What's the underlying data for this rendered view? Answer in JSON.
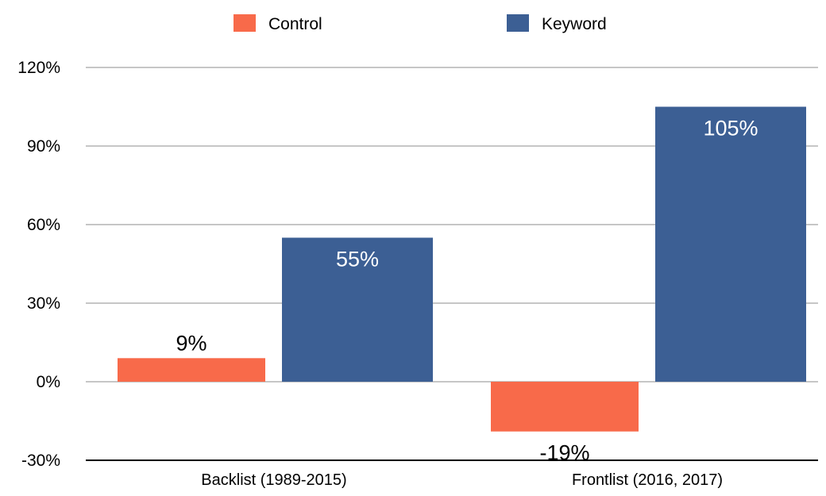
{
  "chart_data": {
    "type": "bar",
    "categories": [
      "Backlist (1989-2015)",
      "Frontlist (2016, 2017)"
    ],
    "series": [
      {
        "name": "Control",
        "values": [
          9,
          -19
        ],
        "labels": [
          "9%",
          "-19%"
        ],
        "color": "#F86A4A"
      },
      {
        "name": "Keyword",
        "values": [
          55,
          105
        ],
        "labels": [
          "55%",
          "105%"
        ],
        "color": "#3C5F94"
      }
    ],
    "yticks": [
      120,
      90,
      60,
      30,
      0,
      -30
    ],
    "ytick_labels": [
      "120%",
      "90%",
      "60%",
      "30%",
      "0%",
      "-30%"
    ],
    "ylim": [
      -30,
      120
    ],
    "grid": true,
    "legend": "top",
    "gridline_color": "#b3b3b3",
    "axis_color": "#000000",
    "title": "",
    "xlabel": "",
    "ylabel": ""
  }
}
